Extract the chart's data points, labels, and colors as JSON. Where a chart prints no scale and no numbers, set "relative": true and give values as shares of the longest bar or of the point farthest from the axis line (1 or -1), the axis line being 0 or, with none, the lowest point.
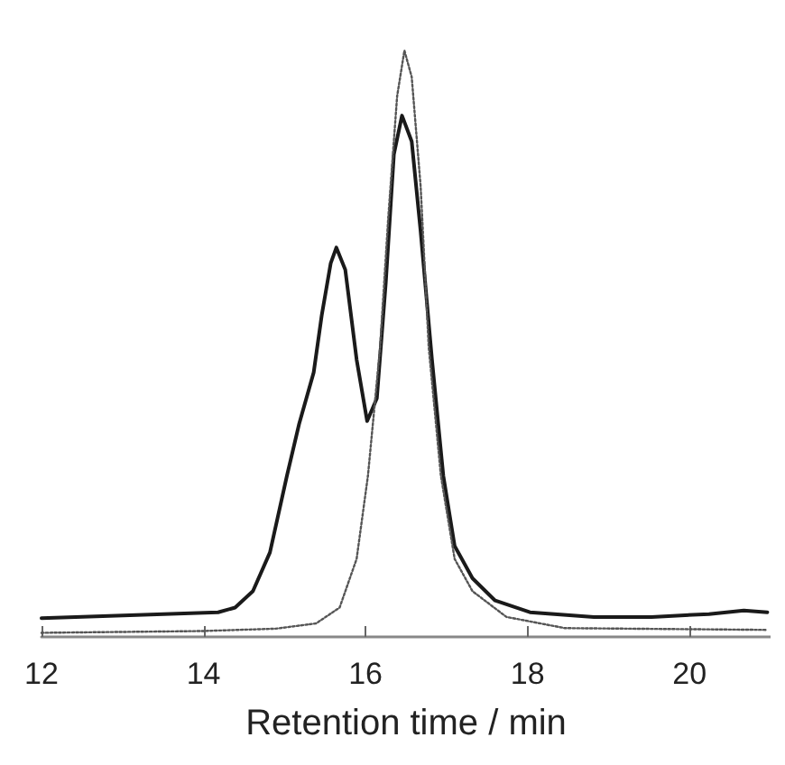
{
  "chart_data": {
    "type": "line",
    "xlabel": "Retention time / min",
    "relative": true,
    "xlim": [
      12,
      21
    ],
    "xticks": [
      12,
      14,
      16,
      18,
      20
    ],
    "series": [
      {
        "color": "#1a1a1a",
        "line_style": "solid",
        "x": [
          12,
          14.18,
          14.39,
          14.61,
          14.82,
          15.03,
          15.18,
          15.36,
          15.46,
          15.57,
          15.64,
          15.75,
          15.89,
          16.02,
          16.14,
          16.25,
          16.35,
          16.45,
          16.57,
          16.68,
          16.82,
          16.96,
          17.1,
          17.32,
          17.6,
          18.03,
          18.82,
          19.53,
          20.24,
          20.67,
          20.96
        ],
        "values": [
          0.032,
          0.042,
          0.05,
          0.078,
          0.144,
          0.275,
          0.363,
          0.451,
          0.549,
          0.637,
          0.664,
          0.626,
          0.473,
          0.368,
          0.407,
          0.604,
          0.823,
          0.889,
          0.845,
          0.692,
          0.473,
          0.275,
          0.155,
          0.1,
          0.062,
          0.042,
          0.034,
          0.034,
          0.039,
          0.045,
          0.042
        ]
      },
      {
        "color": "#555555",
        "line_style": "dotted",
        "x": [
          12,
          13.99,
          14.89,
          15.39,
          15.68,
          15.89,
          16.03,
          16.18,
          16.28,
          16.39,
          16.48,
          16.57,
          16.68,
          16.78,
          16.93,
          17.1,
          17.32,
          17.74,
          18.46,
          20.96
        ],
        "values": [
          0.007,
          0.01,
          0.014,
          0.023,
          0.05,
          0.133,
          0.275,
          0.494,
          0.714,
          0.922,
          1,
          0.955,
          0.769,
          0.494,
          0.275,
          0.133,
          0.078,
          0.034,
          0.015,
          0.012
        ]
      }
    ]
  }
}
